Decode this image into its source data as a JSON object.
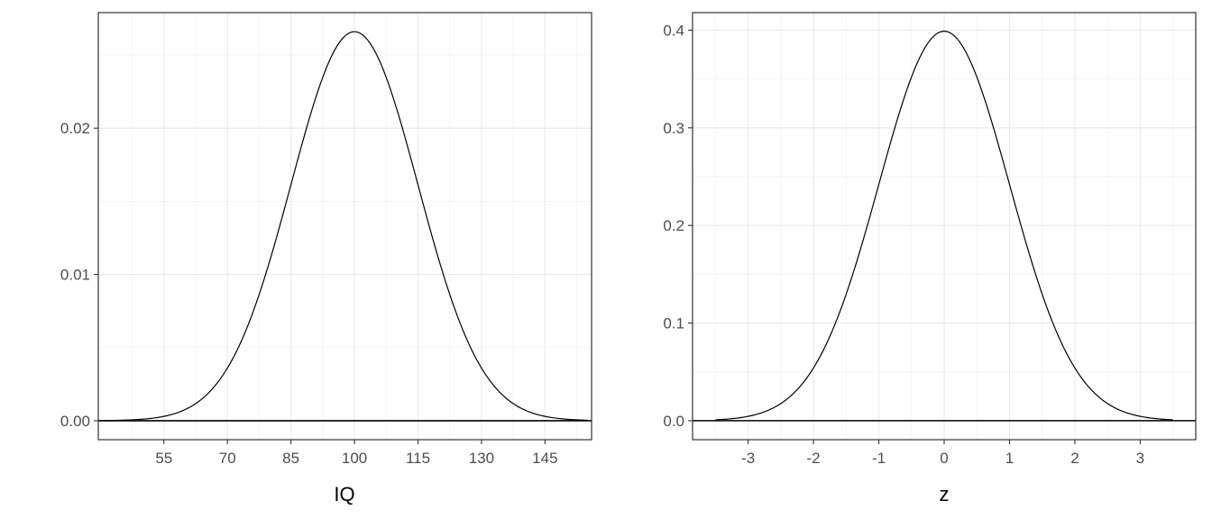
{
  "chart_data": [
    {
      "type": "line",
      "title": "",
      "xlabel": "IQ",
      "ylabel": "",
      "distribution": {
        "mean": 100,
        "sd": 15
      },
      "x_range": [
        40,
        155
      ],
      "xlim": [
        39.5,
        156
      ],
      "ylim": [
        -0.0013,
        0.0279
      ],
      "x_ticks": [
        55,
        70,
        85,
        100,
        115,
        130,
        145
      ],
      "x_tick_labels": [
        "55",
        "70",
        "85",
        "100",
        "115",
        "130",
        "145"
      ],
      "y_ticks": [
        0,
        0.01,
        0.02
      ],
      "y_tick_labels": [
        "0.00",
        "0.01",
        "0.02"
      ],
      "series": [
        {
          "x": [
            40,
            55,
            70,
            85,
            100,
            115,
            130,
            145,
            155
          ],
          "y": [
            8.9e-06,
            0.000295,
            0.0036,
            0.01613,
            0.0266,
            0.01613,
            0.0036,
            0.000295,
            3.19e-05
          ]
        }
      ],
      "hline": 0,
      "grid": true,
      "legend": "none"
    },
    {
      "type": "line",
      "title": "",
      "xlabel": "z",
      "ylabel": "",
      "distribution": {
        "mean": 0,
        "sd": 1
      },
      "x_range": [
        -3.5,
        3.5
      ],
      "xlim": [
        -3.85,
        3.85
      ],
      "ylim": [
        -0.0195,
        0.418
      ],
      "x_ticks": [
        -3,
        -2,
        -1,
        0,
        1,
        2,
        3
      ],
      "x_tick_labels": [
        "-3",
        "-2",
        "-1",
        "0",
        "1",
        "2",
        "3"
      ],
      "y_ticks": [
        0,
        0.1,
        0.2,
        0.3,
        0.4
      ],
      "y_tick_labels": [
        "0.0",
        "0.1",
        "0.2",
        "0.3",
        "0.4"
      ],
      "series": [
        {
          "x": [
            -3.5,
            -3,
            -2,
            -1,
            0,
            1,
            2,
            3,
            3.5
          ],
          "y": [
            0.00087,
            0.00443,
            0.054,
            0.242,
            0.3989,
            0.242,
            0.054,
            0.00443,
            0.00087
          ]
        }
      ],
      "hline": 0,
      "grid": true,
      "legend": "none"
    }
  ]
}
